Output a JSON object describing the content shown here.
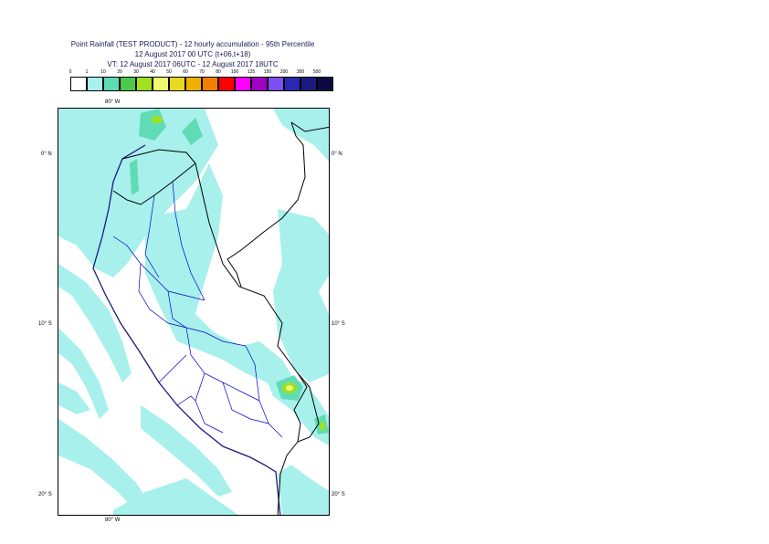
{
  "title": {
    "line1": "Point Rainfall (TEST PRODUCT) - 12 hourly accumulation - 95th Percentile",
    "line2": "12 August 2017 00 UTC (t+06,t+18)",
    "line3": "VT: 12 August 2017 06UTC - 12 August 2017 18UTC"
  },
  "legend": {
    "thresholds": [
      "0",
      "1",
      "10",
      "20",
      "30",
      "40",
      "50",
      "60",
      "70",
      "80",
      "100",
      "125",
      "150",
      "200",
      "300",
      "500"
    ],
    "colors": [
      "#ffffff",
      "#a8f0ec",
      "#5fdcb4",
      "#4cc84c",
      "#a0e020",
      "#f0f870",
      "#e8d820",
      "#f0b000",
      "#f08000",
      "#ff0000",
      "#ff00ff",
      "#a000c0",
      "#7a50f0",
      "#2828b0",
      "#1a1a80",
      "#0a0a40"
    ]
  },
  "axes": {
    "lon_top": "80° W",
    "lon_bottom": "80° W",
    "lat": [
      "0° N",
      "10° S",
      "20° S"
    ]
  },
  "map_colors": {
    "light_rain": "#a8f0ec",
    "moderate_rain": "#5fdcb4",
    "heavy_rain": "#a0e020",
    "very_heavy_rain": "#f0f870",
    "country_border": "#000000",
    "province_border": "#0000cc",
    "coast": "#1a1a80"
  }
}
